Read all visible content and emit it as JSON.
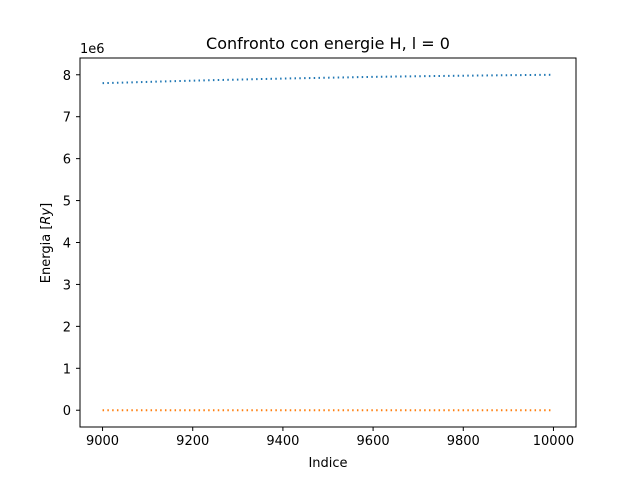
{
  "chart_data": {
    "type": "line",
    "title": "Confronto con energie H, l = 0",
    "xlabel": "Indice",
    "ylabel_prefix": "Energia [",
    "ylabel_unit": "Ry",
    "ylabel_suffix": "]",
    "y_offset_text": "1e6",
    "y_scale_factor": 1000000,
    "xlim": [
      8950,
      10050
    ],
    "ylim": [
      -400000,
      8400000
    ],
    "x_ticks": [
      9000,
      9200,
      9400,
      9600,
      9800,
      10000
    ],
    "y_ticks": [
      0,
      1000000,
      2000000,
      3000000,
      4000000,
      5000000,
      6000000,
      7000000,
      8000000
    ],
    "x_tick_labels": [
      "9000",
      "9200",
      "9400",
      "9600",
      "9800",
      "10000"
    ],
    "y_tick_labels": [
      "0",
      "1",
      "2",
      "3",
      "4",
      "5",
      "6",
      "7",
      "8"
    ],
    "grid": false,
    "line_style": "dotted",
    "series": [
      {
        "color": "#1f77b4",
        "x": [
          9000,
          9100,
          9200,
          9300,
          9400,
          9500,
          9600,
          9700,
          9800,
          9900,
          10000
        ],
        "values": [
          7800000,
          7830000,
          7860000,
          7885000,
          7910000,
          7930000,
          7950000,
          7965000,
          7978000,
          7990000,
          8000000
        ]
      },
      {
        "color": "#ff7f0e",
        "x": [
          9000,
          9100,
          9200,
          9300,
          9400,
          9500,
          9600,
          9700,
          9800,
          9900,
          10000
        ],
        "values": [
          0,
          0,
          0,
          0,
          0,
          0,
          0,
          0,
          0,
          0,
          0
        ]
      }
    ]
  }
}
